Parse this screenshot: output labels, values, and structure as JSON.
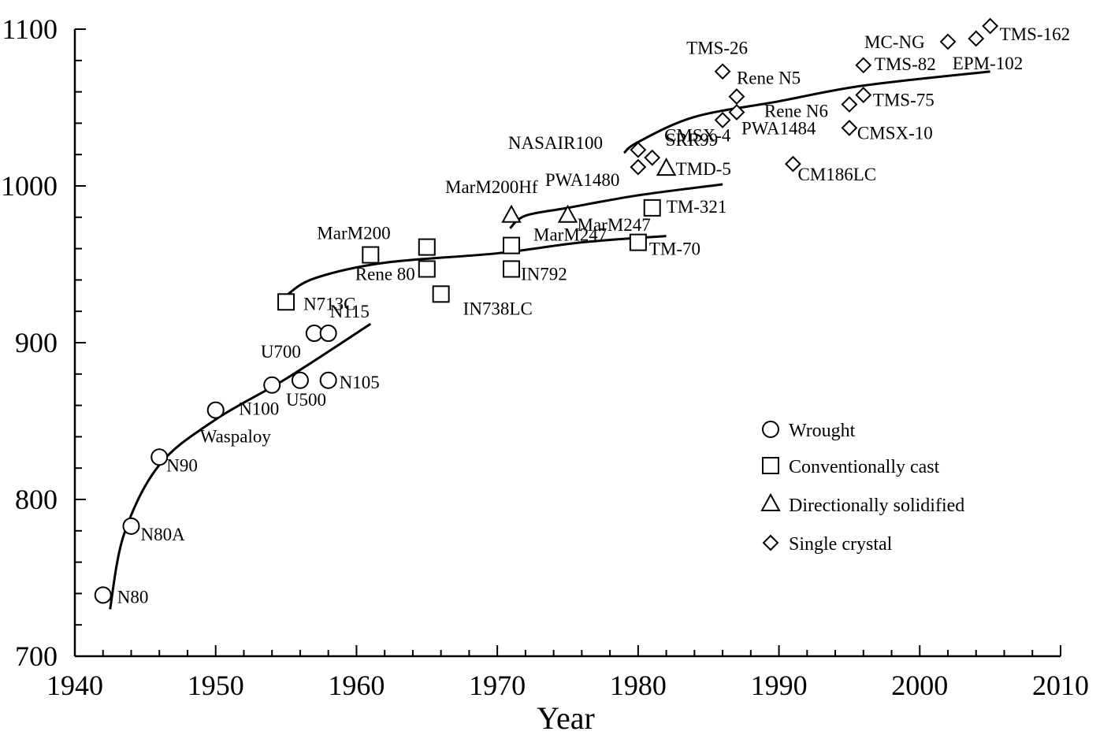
{
  "chart_data": {
    "type": "scatter",
    "xlabel": "Year",
    "ylabel": "",
    "xlim": [
      1940,
      2010
    ],
    "ylim": [
      700,
      1100
    ],
    "x_ticks": [
      1940,
      1950,
      1960,
      1970,
      1980,
      1990,
      2000,
      2010
    ],
    "y_ticks": [
      700,
      800,
      900,
      1000,
      1100
    ],
    "grid": false,
    "legend_position": "lower-right",
    "series": [
      {
        "name": "Wrought",
        "marker": "circle",
        "points": [
          {
            "label": "N80",
            "x": 1942,
            "y": 739
          },
          {
            "label": "N80A",
            "x": 1944,
            "y": 783
          },
          {
            "label": "N90",
            "x": 1946,
            "y": 827
          },
          {
            "label": "Waspaloy",
            "x": 1950,
            "y": 857
          },
          {
            "label": "N100",
            "x": 1954,
            "y": 873
          },
          {
            "label": "U500",
            "x": 1956,
            "y": 876
          },
          {
            "label": "N105",
            "x": 1958,
            "y": 876
          },
          {
            "label": "U700",
            "x": 1957,
            "y": 906
          },
          {
            "label": "N115",
            "x": 1958,
            "y": 906
          }
        ]
      },
      {
        "name": "Conventionally cast",
        "marker": "square",
        "points": [
          {
            "label": "N713C",
            "x": 1955,
            "y": 926
          },
          {
            "label": "MarM200",
            "x": 1961,
            "y": 956
          },
          {
            "label": "Rene 80",
            "x": 1965,
            "y": 947
          },
          {
            "label": "",
            "x": 1965,
            "y": 961
          },
          {
            "label": "IN738LC",
            "x": 1966,
            "y": 931
          },
          {
            "label": "IN792",
            "x": 1971,
            "y": 947
          },
          {
            "label": "MarM247",
            "x": 1971,
            "y": 962
          },
          {
            "label": "TM-70",
            "x": 1980,
            "y": 964
          },
          {
            "label": "TM-321",
            "x": 1981,
            "y": 986
          }
        ]
      },
      {
        "name": "Directionally solidified",
        "marker": "triangle",
        "points": [
          {
            "label": "MarM200Hf",
            "x": 1971,
            "y": 981
          },
          {
            "label": "MarM247",
            "x": 1975,
            "y": 981
          },
          {
            "label": "TMD-5",
            "x": 1982,
            "y": 1011
          }
        ]
      },
      {
        "name": "Single crystal",
        "marker": "diamond",
        "points": [
          {
            "label": "PWA1480",
            "x": 1980,
            "y": 1012
          },
          {
            "label": "NASAIR100",
            "x": 1980,
            "y": 1023
          },
          {
            "label": "SRR99",
            "x": 1981,
            "y": 1018
          },
          {
            "label": "CMSX-4",
            "x": 1986,
            "y": 1042
          },
          {
            "label": "PWA1484",
            "x": 1987,
            "y": 1047
          },
          {
            "label": "TMS-26",
            "x": 1986,
            "y": 1073
          },
          {
            "label": "Rene N5",
            "x": 1987,
            "y": 1057
          },
          {
            "label": "CM186LC",
            "x": 1991,
            "y": 1014
          },
          {
            "label": "Rene N6",
            "x": 1995,
            "y": 1052
          },
          {
            "label": "CMSX-10",
            "x": 1995,
            "y": 1037
          },
          {
            "label": "TMS-75",
            "x": 1996,
            "y": 1058
          },
          {
            "label": "TMS-82",
            "x": 1996,
            "y": 1077
          },
          {
            "label": "MC-NG",
            "x": 2002,
            "y": 1092
          },
          {
            "label": "EPM-102",
            "x": 2004,
            "y": 1094
          },
          {
            "label": "TMS-162",
            "x": 2005,
            "y": 1102
          }
        ]
      }
    ],
    "trend_lines": [
      {
        "points": [
          [
            1942.5,
            730
          ],
          [
            1943.5,
            778
          ],
          [
            1946,
            822
          ],
          [
            1950,
            851
          ],
          [
            1955,
            877
          ],
          [
            1961,
            912
          ]
        ]
      },
      {
        "points": [
          [
            1955,
            930
          ],
          [
            1957,
            941
          ],
          [
            1962,
            951
          ],
          [
            1970,
            957
          ],
          [
            1976,
            964
          ],
          [
            1982,
            968
          ]
        ]
      },
      {
        "points": [
          [
            1970.9,
            973
          ],
          [
            1972,
            981
          ],
          [
            1975,
            986
          ],
          [
            1980,
            994
          ],
          [
            1986,
            1001
          ]
        ]
      },
      {
        "points": [
          [
            1979,
            1021
          ],
          [
            1980,
            1028
          ],
          [
            1984,
            1044
          ],
          [
            1990,
            1054
          ],
          [
            1996,
            1064
          ],
          [
            2005,
            1073
          ]
        ]
      }
    ]
  }
}
